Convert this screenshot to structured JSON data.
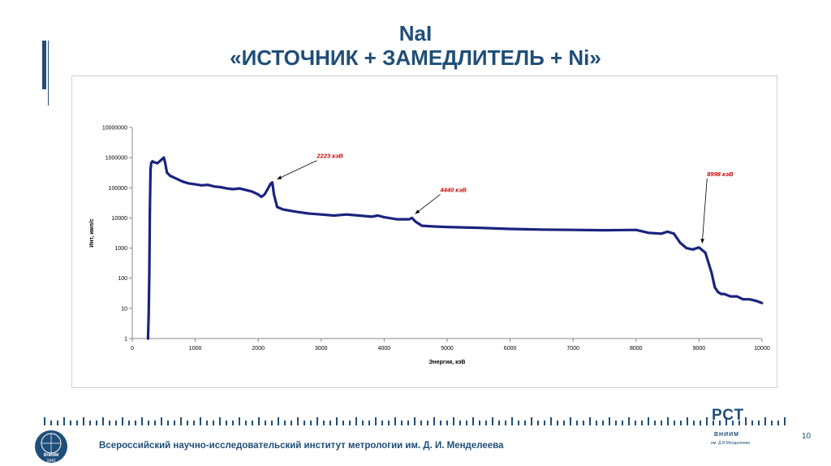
{
  "slide": {
    "title_line1": "NaI",
    "title_line2": "«ИСТОЧНИК + ЗАМЕДЛИТЕЛЬ + Ni»",
    "page_number": "10",
    "footer_text": "Всероссийский научно-исследовательский институт метрологии им. Д. И. Менделеева",
    "rst_logo": "РСТ",
    "vniim_label": "ВНИИМ",
    "vniim_sub": "им. Д.И.Менделеева",
    "logo_label": "ВНИИМ",
    "logo_year": "1842",
    "accent_color": "#1f4e79"
  },
  "chart_data": {
    "type": "scatter",
    "xlabel": "Энергия, кэВ",
    "ylabel": "Инт, имп/с",
    "xlim": [
      0,
      10000
    ],
    "ylim": [
      1,
      10000000
    ],
    "y_scale": "log",
    "x_ticks": [
      "0",
      "1000",
      "2000",
      "3000",
      "4000",
      "5000",
      "6000",
      "7000",
      "8000",
      "9000",
      "10000"
    ],
    "y_ticks": [
      "1",
      "10",
      "100",
      "1000",
      "10000",
      "100000",
      "1000000",
      "10000000"
    ],
    "grid": false,
    "legend": "none",
    "series_color": "#1a237e",
    "annotation_color": "#cc0000",
    "series": [
      {
        "x": [
          250,
          260,
          270,
          280,
          290,
          300,
          320,
          350,
          400,
          450,
          500,
          520,
          550,
          600,
          700,
          800,
          900,
          1000,
          1100,
          1200,
          1300,
          1400,
          1500,
          1600,
          1700,
          1800,
          1900,
          2000,
          2050,
          2100,
          2150,
          2200,
          2223,
          2250,
          2300,
          2400,
          2600,
          2800,
          3000,
          3200,
          3400,
          3600,
          3800,
          3900,
          4000,
          4200,
          4400,
          4440,
          4500,
          4600,
          4800,
          5000,
          5500,
          6000,
          6500,
          7000,
          7500,
          8000,
          8200,
          8400,
          8500,
          8600,
          8700,
          8800,
          8900,
          8998,
          9100,
          9200,
          9250,
          9300,
          9350,
          9400,
          9500,
          9600,
          9700,
          9800,
          9900,
          10000
        ],
        "y": [
          1,
          6,
          150,
          20000,
          400000,
          650000,
          750000,
          700000,
          650000,
          800000,
          1000000,
          700000,
          320000,
          250000,
          200000,
          160000,
          140000,
          130000,
          120000,
          125000,
          110000,
          105000,
          95000,
          90000,
          95000,
          85000,
          75000,
          60000,
          50000,
          60000,
          90000,
          140000,
          150000,
          60000,
          23000,
          19000,
          16000,
          14000,
          13000,
          12000,
          13000,
          12000,
          11000,
          12000,
          10500,
          9000,
          9000,
          10000,
          7500,
          5500,
          5200,
          5000,
          4700,
          4300,
          4100,
          4000,
          3900,
          4000,
          3200,
          3000,
          3500,
          3000,
          1500,
          1000,
          900,
          1050,
          700,
          150,
          50,
          35,
          30,
          30,
          25,
          25,
          20,
          20,
          18,
          15
        ]
      }
    ],
    "annotations": [
      {
        "text": "2223 кэВ",
        "x": 2223,
        "y": 150000
      },
      {
        "text": "4440 кэВ",
        "x": 4440,
        "y": 10000
      },
      {
        "text": "8998 кэВ",
        "x": 8998,
        "y": 1050
      }
    ]
  }
}
